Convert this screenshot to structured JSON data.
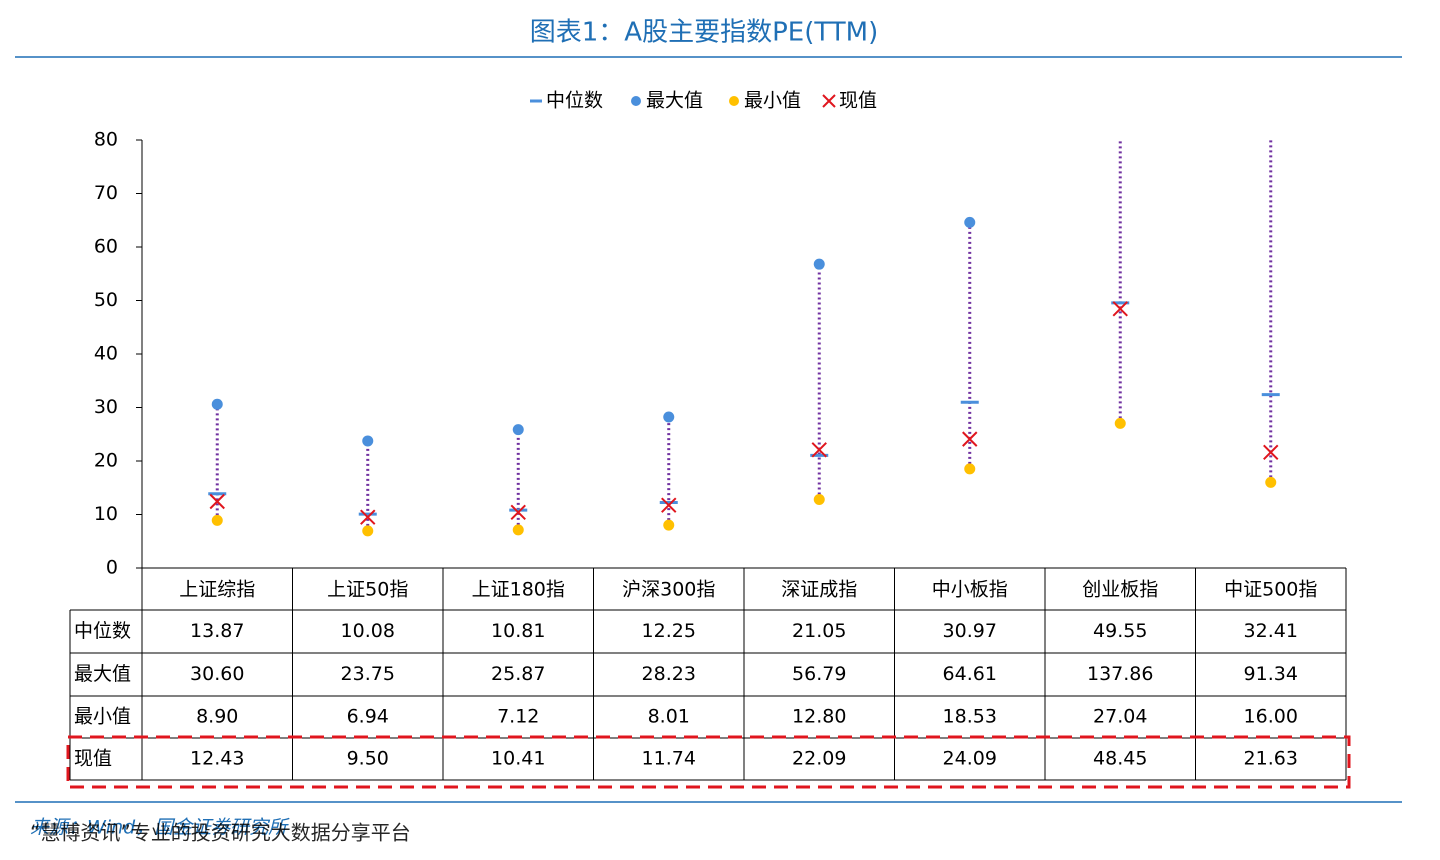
{
  "chart_data": {
    "type": "range",
    "title": "图表1：A股主要指数PE(TTM)",
    "categories": [
      "上证综指",
      "上证50指",
      "上证180指",
      "沪深300指",
      "深证成指",
      "中小板指",
      "创业板指",
      "中证500指"
    ],
    "series": [
      {
        "name": "中位数",
        "color": "#4a8fdc",
        "marker": "dash",
        "values": [
          13.87,
          10.08,
          10.81,
          12.25,
          21.05,
          30.97,
          49.55,
          32.41
        ],
        "value_labels": [
          "13.87",
          "10.08",
          "10.81",
          "12.25",
          "21.05",
          "30.97",
          "49.55",
          "32.41"
        ]
      },
      {
        "name": "最大值",
        "color": "#4a8fdc",
        "marker": "dot",
        "values": [
          30.6,
          23.75,
          25.87,
          28.23,
          56.79,
          64.61,
          137.86,
          91.34
        ],
        "value_labels": [
          "30.60",
          "23.75",
          "25.87",
          "28.23",
          "56.79",
          "64.61",
          "137.86",
          "91.34"
        ]
      },
      {
        "name": "最小值",
        "color": "#ffc000",
        "marker": "dot",
        "values": [
          8.9,
          6.94,
          7.12,
          8.01,
          12.8,
          18.53,
          27.04,
          16.0
        ],
        "value_labels": [
          "8.90",
          "6.94",
          "7.12",
          "8.01",
          "12.80",
          "18.53",
          "27.04",
          "16.00"
        ]
      },
      {
        "name": "现值",
        "color": "#e0161e",
        "marker": "cross",
        "values": [
          12.43,
          9.5,
          10.41,
          11.74,
          22.09,
          24.09,
          48.45,
          21.63
        ],
        "value_labels": [
          "12.43",
          "9.50",
          "10.41",
          "11.74",
          "22.09",
          "24.09",
          "48.45",
          "21.63"
        ]
      }
    ],
    "range_color": "#7030a0",
    "ylim": [
      0,
      80
    ],
    "yticks": [
      0,
      10,
      20,
      30,
      40,
      50,
      60,
      70,
      80
    ],
    "legend": "top",
    "source": "来源：Wind，国金证券研究所",
    "watermark": "“慧博资讯”专业的投资研究大数据分享平台"
  }
}
